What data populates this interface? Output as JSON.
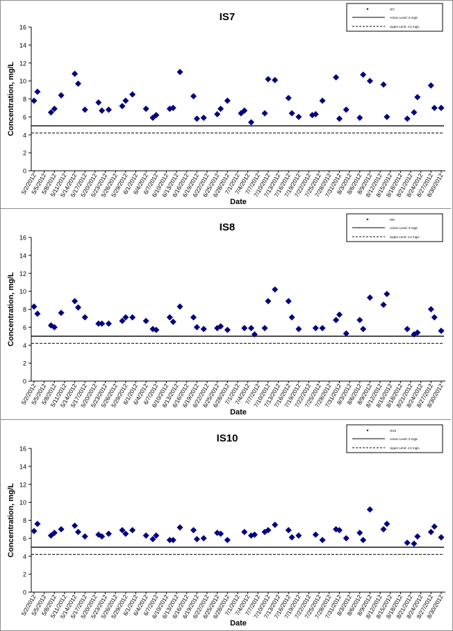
{
  "chart_data": [
    {
      "type": "scatter",
      "title": "IS7",
      "xlabel": "Date",
      "ylabel": "Concentration, mg/L",
      "ylim": [
        0,
        16
      ],
      "yticks": [
        0,
        2,
        4,
        6,
        8,
        10,
        12,
        14,
        16
      ],
      "grid": false,
      "legend_position": "top-right",
      "x_ticks": [
        "5/2/2012",
        "5/5/2012",
        "5/8/2012",
        "5/11/2012",
        "5/14/2012",
        "5/17/2012",
        "5/20/2012",
        "5/23/2012",
        "5/26/2012",
        "5/29/2012",
        "6/1/2012",
        "6/4/2012",
        "6/7/2012",
        "6/10/2012",
        "6/13/2012",
        "6/16/2012",
        "6/19/2012",
        "6/22/2012",
        "6/25/2012",
        "6/28/2012",
        "7/1/2012",
        "7/4/2012",
        "7/7/2012",
        "7/10/2012",
        "7/13/2012",
        "7/16/2012",
        "7/19/2012",
        "7/22/2012",
        "7/25/2012",
        "7/28/2012",
        "7/31/2012",
        "8/3/2012",
        "8/6/2012",
        "8/9/2012",
        "8/12/2012",
        "8/15/2012",
        "8/18/2012",
        "8/21/2012",
        "8/24/2012",
        "8/27/2012",
        "8/30/2012"
      ],
      "series": [
        {
          "name": "IS7",
          "marker": "diamond",
          "color": "#000080",
          "x": [
            "5/2/2012",
            "5/3/2012",
            "5/7/2012",
            "5/8/2012",
            "5/10/2012",
            "5/14/2012",
            "5/15/2012",
            "5/17/2012",
            "5/21/2012",
            "5/22/2012",
            "5/24/2012",
            "5/28/2012",
            "5/29/2012",
            "5/31/2012",
            "6/4/2012",
            "6/6/2012",
            "6/7/2012",
            "6/11/2012",
            "6/12/2012",
            "6/14/2012",
            "6/18/2012",
            "6/19/2012",
            "6/21/2012",
            "6/25/2012",
            "6/26/2012",
            "6/28/2012",
            "7/2/2012",
            "7/3/2012",
            "7/5/2012",
            "7/9/2012",
            "7/10/2012",
            "7/12/2012",
            "7/16/2012",
            "7/17/2012",
            "7/19/2012",
            "7/23/2012",
            "7/24/2012",
            "7/26/2012",
            "7/30/2012",
            "7/31/2012",
            "8/2/2012",
            "8/6/2012",
            "8/7/2012",
            "8/9/2012",
            "8/13/2012",
            "8/14/2012",
            "8/20/2012",
            "8/22/2012",
            "8/23/2012",
            "8/27/2012",
            "8/28/2012",
            "8/30/2012"
          ],
          "y": [
            7.8,
            8.8,
            6.5,
            6.9,
            8.4,
            10.8,
            9.7,
            6.8,
            7.6,
            6.7,
            6.8,
            7.2,
            7.8,
            8.5,
            6.9,
            5.9,
            6.2,
            6.9,
            7.0,
            11.0,
            8.3,
            5.8,
            5.9,
            6.3,
            6.9,
            7.8,
            6.4,
            6.7,
            5.4,
            6.4,
            10.2,
            10.1,
            8.1,
            6.4,
            6.0,
            6.2,
            6.3,
            7.8,
            10.4,
            5.8,
            6.8,
            5.9,
            10.7,
            10.0,
            9.6,
            6.0,
            5.8,
            6.5,
            8.2,
            9.5,
            7.0,
            7.0
          ]
        },
        {
          "name": "Action Level: 5 mg/L",
          "style": "solid",
          "value": 5
        },
        {
          "name": "Upper Limit: 4.2 mg/L",
          "style": "dashed",
          "value": 4.2
        }
      ]
    },
    {
      "type": "scatter",
      "title": "IS8",
      "xlabel": "Date",
      "ylabel": "Concentration, mg/L",
      "ylim": [
        0,
        16
      ],
      "yticks": [
        0,
        2,
        4,
        6,
        8,
        10,
        12,
        14,
        16
      ],
      "grid": false,
      "legend_position": "top-right",
      "x_ticks": [
        "5/2/2012",
        "5/5/2012",
        "5/8/2012",
        "5/11/2012",
        "5/14/2012",
        "5/17/2012",
        "5/20/2012",
        "5/23/2012",
        "5/26/2012",
        "5/29/2012",
        "6/1/2012",
        "6/4/2012",
        "6/7/2012",
        "6/10/2012",
        "6/13/2012",
        "6/16/2012",
        "6/19/2012",
        "6/22/2012",
        "6/25/2012",
        "6/28/2012",
        "7/1/2012",
        "7/4/2012",
        "7/7/2012",
        "7/10/2012",
        "7/13/2012",
        "7/16/2012",
        "7/19/2012",
        "7/22/2012",
        "7/25/2012",
        "7/28/2012",
        "7/31/2012",
        "8/3/2012",
        "8/6/2012",
        "8/9/2012",
        "8/12/2012",
        "8/15/2012",
        "8/18/2012",
        "8/21/2012",
        "8/24/2012",
        "8/27/2012",
        "8/30/2012"
      ],
      "series": [
        {
          "name": "IS8",
          "marker": "diamond",
          "color": "#000080",
          "x": [
            "5/2/2012",
            "5/3/2012",
            "5/7/2012",
            "5/8/2012",
            "5/10/2012",
            "5/14/2012",
            "5/15/2012",
            "5/17/2012",
            "5/21/2012",
            "5/22/2012",
            "5/24/2012",
            "5/28/2012",
            "5/29/2012",
            "5/31/2012",
            "6/4/2012",
            "6/6/2012",
            "6/7/2012",
            "6/11/2012",
            "6/12/2012",
            "6/14/2012",
            "6/18/2012",
            "6/19/2012",
            "6/21/2012",
            "6/25/2012",
            "6/26/2012",
            "6/28/2012",
            "7/3/2012",
            "7/5/2012",
            "7/6/2012",
            "7/9/2012",
            "7/10/2012",
            "7/12/2012",
            "7/16/2012",
            "7/17/2012",
            "7/19/2012",
            "7/24/2012",
            "7/26/2012",
            "7/30/2012",
            "7/31/2012",
            "8/2/2012",
            "8/6/2012",
            "8/7/2012",
            "8/9/2012",
            "8/13/2012",
            "8/14/2012",
            "8/20/2012",
            "8/22/2012",
            "8/23/2012",
            "8/27/2012",
            "8/28/2012",
            "8/30/2012"
          ],
          "y": [
            8.3,
            7.5,
            6.2,
            6.0,
            7.6,
            8.9,
            8.2,
            7.1,
            6.4,
            6.4,
            6.4,
            6.7,
            7.1,
            7.1,
            6.7,
            5.8,
            5.7,
            7.1,
            6.6,
            8.3,
            7.1,
            6.0,
            5.8,
            5.9,
            6.1,
            5.7,
            5.9,
            5.9,
            5.2,
            5.9,
            8.9,
            10.2,
            8.9,
            7.1,
            5.8,
            5.9,
            5.9,
            6.8,
            7.4,
            5.3,
            6.8,
            5.8,
            9.3,
            8.5,
            9.7,
            5.8,
            5.2,
            5.4,
            8.0,
            7.1,
            5.6
          ]
        },
        {
          "name": "Action Level: 5 mg/L",
          "style": "solid",
          "value": 5
        },
        {
          "name": "Upper Limit: 4.2 mg/L",
          "style": "dashed",
          "value": 4.2
        }
      ]
    },
    {
      "type": "scatter",
      "title": "IS10",
      "xlabel": "Date",
      "ylabel": "Concentration, mg/L",
      "ylim": [
        0,
        16
      ],
      "yticks": [
        0,
        2,
        4,
        6,
        8,
        10,
        12,
        14,
        16
      ],
      "grid": false,
      "legend_position": "top-right",
      "x_ticks": [
        "5/2/2012",
        "5/5/2012",
        "5/8/2012",
        "5/11/2012",
        "5/14/2012",
        "5/17/2012",
        "5/20/2012",
        "5/23/2012",
        "5/26/2012",
        "5/29/2012",
        "6/1/2012",
        "6/4/2012",
        "6/7/2012",
        "6/10/2012",
        "6/13/2012",
        "6/16/2012",
        "6/19/2012",
        "6/22/2012",
        "6/25/2012",
        "6/28/2012",
        "7/1/2012",
        "7/4/2012",
        "7/7/2012",
        "7/10/2012",
        "7/13/2012",
        "7/16/2012",
        "7/19/2012",
        "7/22/2012",
        "7/25/2012",
        "7/28/2012",
        "7/31/2012",
        "8/3/2012",
        "8/6/2012",
        "8/9/2012",
        "8/12/2012",
        "8/15/2012",
        "8/18/2012",
        "8/21/2012",
        "8/24/2012",
        "8/27/2012",
        "8/30/2012"
      ],
      "series": [
        {
          "name": "IS10",
          "marker": "diamond",
          "color": "#000080",
          "x": [
            "5/2/2012",
            "5/3/2012",
            "5/7/2012",
            "5/8/2012",
            "5/10/2012",
            "5/14/2012",
            "5/15/2012",
            "5/17/2012",
            "5/21/2012",
            "5/22/2012",
            "5/24/2012",
            "5/28/2012",
            "5/29/2012",
            "5/31/2012",
            "6/4/2012",
            "6/6/2012",
            "6/7/2012",
            "6/11/2012",
            "6/12/2012",
            "6/14/2012",
            "6/18/2012",
            "6/19/2012",
            "6/21/2012",
            "6/25/2012",
            "6/26/2012",
            "6/28/2012",
            "7/3/2012",
            "7/5/2012",
            "7/6/2012",
            "7/9/2012",
            "7/10/2012",
            "7/12/2012",
            "7/16/2012",
            "7/17/2012",
            "7/19/2012",
            "7/24/2012",
            "7/26/2012",
            "7/30/2012",
            "7/31/2012",
            "8/2/2012",
            "8/6/2012",
            "8/7/2012",
            "8/9/2012",
            "8/13/2012",
            "8/14/2012",
            "8/20/2012",
            "8/22/2012",
            "8/23/2012",
            "8/27/2012",
            "8/28/2012",
            "8/30/2012"
          ],
          "y": [
            6.8,
            7.6,
            6.3,
            6.6,
            7.0,
            7.4,
            6.7,
            6.2,
            6.4,
            6.2,
            6.5,
            6.9,
            6.5,
            6.9,
            6.3,
            5.9,
            6.3,
            5.8,
            5.8,
            7.2,
            6.9,
            5.9,
            6.0,
            6.6,
            6.5,
            5.8,
            6.7,
            6.3,
            6.4,
            6.7,
            6.9,
            7.5,
            6.9,
            6.1,
            6.3,
            6.4,
            5.8,
            7.0,
            6.9,
            6.0,
            6.6,
            5.8,
            9.2,
            7.0,
            7.6,
            5.5,
            5.4,
            6.2,
            6.7,
            7.3,
            6.1
          ]
        },
        {
          "name": "Action Level: 5 mg/L",
          "style": "solid",
          "value": 5
        },
        {
          "name": "Upper Limit: 4.2 mg/L",
          "style": "dashed",
          "value": 4.2
        }
      ]
    }
  ]
}
